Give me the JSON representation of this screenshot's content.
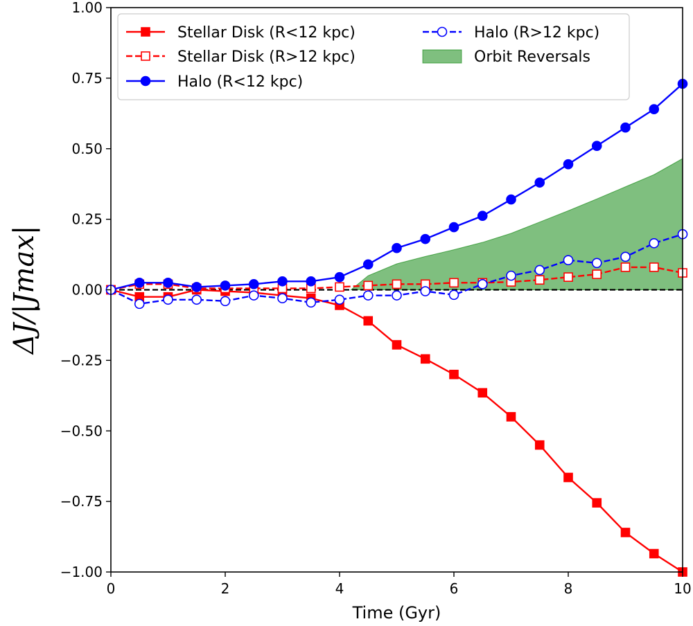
{
  "chart_data": {
    "type": "line",
    "title": "",
    "xlabel": "Time (Gyr)",
    "ylabel": "ΔJ/|Jmax|",
    "xlim": [
      0,
      10
    ],
    "ylim": [
      -1.0,
      1.0
    ],
    "x_ticks": [
      0,
      2,
      4,
      6,
      8,
      10
    ],
    "x_tick_labels": [
      "0",
      "2",
      "4",
      "6",
      "8",
      "10"
    ],
    "y_ticks": [
      1.0,
      0.75,
      0.5,
      0.25,
      0.0,
      -0.25,
      -0.5,
      -0.75,
      -1.0
    ],
    "y_tick_labels": [
      "1.00",
      "0.75",
      "0.50",
      "0.25",
      "0.00",
      "−0.25",
      "−0.50",
      "−0.75",
      "−1.00"
    ],
    "grid": false,
    "legend_placement": "upper-left",
    "reference_line": {
      "y": 0,
      "style": "dashed",
      "color": "#000000"
    },
    "x": [
      0,
      0.5,
      1,
      1.5,
      2,
      2.5,
      3,
      3.5,
      4,
      4.5,
      5,
      5.5,
      6,
      6.5,
      7,
      7.5,
      8,
      8.5,
      9,
      9.5,
      10
    ],
    "series": [
      {
        "name": "Stellar Disk (R<12 kpc)",
        "color": "#ff0000",
        "line": "solid",
        "marker": "square",
        "filled": true,
        "values": [
          0.0,
          -0.025,
          -0.025,
          0.0,
          -0.005,
          -0.01,
          -0.02,
          -0.03,
          -0.055,
          -0.11,
          -0.195,
          -0.245,
          -0.3,
          -0.365,
          -0.45,
          -0.55,
          -0.665,
          -0.755,
          -0.86,
          -0.935,
          -1.0
        ]
      },
      {
        "name": "Stellar Disk (R>12 kpc)",
        "color": "#ff0000",
        "line": "dashed",
        "marker": "square",
        "filled": false,
        "values": [
          0.0,
          0.02,
          0.02,
          0.005,
          0.005,
          0.005,
          0.005,
          0.005,
          0.01,
          0.015,
          0.02,
          0.02,
          0.025,
          0.025,
          0.028,
          0.035,
          0.045,
          0.055,
          0.08,
          0.08,
          0.06
        ]
      },
      {
        "name": "Halo (R<12 kpc)",
        "color": "#0000ff",
        "line": "solid",
        "marker": "circle",
        "filled": true,
        "values": [
          0.0,
          0.025,
          0.025,
          0.01,
          0.015,
          0.02,
          0.03,
          0.03,
          0.045,
          0.09,
          0.148,
          0.18,
          0.222,
          0.262,
          0.32,
          0.38,
          0.445,
          0.51,
          0.575,
          0.64,
          0.73
        ]
      },
      {
        "name": "Halo (R>12 kpc)",
        "color": "#0000ff",
        "line": "dashed",
        "marker": "circle",
        "filled": false,
        "values": [
          0.0,
          -0.05,
          -0.035,
          -0.035,
          -0.04,
          -0.02,
          -0.03,
          -0.045,
          -0.035,
          -0.02,
          -0.02,
          -0.005,
          -0.018,
          0.02,
          0.05,
          0.07,
          0.105,
          0.095,
          0.117,
          0.165,
          0.197
        ]
      }
    ],
    "area": {
      "name": "Orbit Reversals",
      "color": "#008000",
      "opacity": 0.5,
      "x": [
        4.2,
        4.5,
        5,
        5.5,
        6,
        6.5,
        7,
        7.5,
        8,
        8.5,
        9,
        9.5,
        10
      ],
      "lower": [
        0.0,
        0.0,
        0.0,
        0.0,
        0.0,
        0.0,
        0.0,
        0.0,
        0.0,
        0.0,
        0.0,
        0.0,
        0.0
      ],
      "upper": [
        0.0,
        0.05,
        0.092,
        0.118,
        0.142,
        0.168,
        0.2,
        0.24,
        0.28,
        0.322,
        0.365,
        0.408,
        0.465
      ]
    },
    "legend": [
      "Stellar Disk (R<12 kpc)",
      "Stellar Disk (R>12 kpc)",
      "Halo (R<12 kpc)",
      "Halo (R>12 kpc)",
      "Orbit Reversals"
    ]
  }
}
